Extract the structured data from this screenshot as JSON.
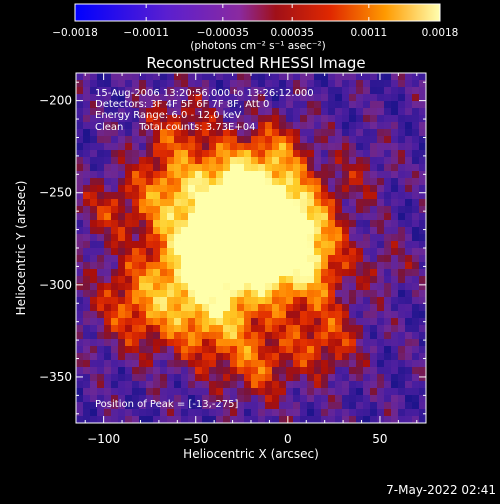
{
  "chart_data": {
    "type": "heatmap",
    "title": "Reconstructed RHESSI Image",
    "xlabel": "Heliocentric X (arcsec)",
    "ylabel": "Heliocentric Y (arcsec)",
    "xlim": [
      -115,
      75
    ],
    "ylim": [
      -375,
      -185
    ],
    "xticks": [
      -100,
      -50,
      0,
      50
    ],
    "yticks": [
      -200,
      -250,
      -300,
      -350
    ],
    "x_tick_labels": [
      "−100",
      "−50",
      "0",
      "50"
    ],
    "y_tick_labels": [
      "−200",
      "−250",
      "−300",
      "−350"
    ],
    "colorbar": {
      "range": [
        -0.0018,
        0.0018
      ],
      "tick_labels": [
        "−0.0018",
        "−0.0011",
        "−0.00035",
        "0.00035",
        "0.0011",
        "0.0018"
      ],
      "unit_label": "(photons cm⁻² s⁻¹ asec⁻²)"
    },
    "annotations": [
      "15-Aug-2006 13:20:56.000 to 13:26:12.000",
      "Detectors: 3F 4F 5F 6F 7F 8F, Att 0",
      "Energy Range: 6.0 - 12.0 keV",
      "Clean     Total counts: 3.73E+04"
    ],
    "peak_label": "Position of Peak = [-13,-275]",
    "peak": [
      -13,
      -275
    ],
    "footer_date": "7-May-2022 02:41"
  }
}
